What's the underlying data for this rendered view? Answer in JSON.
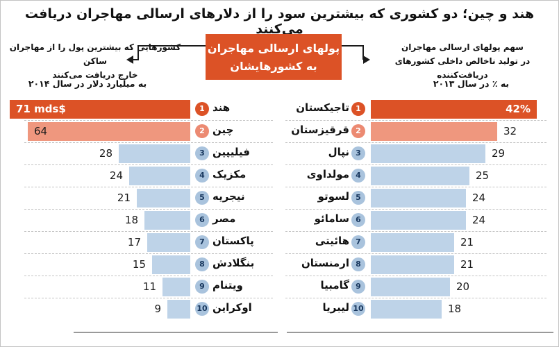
{
  "title": "هند و چین؛ دو کشوری که بیشترین سود را از دلارهای ارسالی مهاجران دریافت می‌کنند",
  "center_box": {
    "line1": "پولهای ارسالی مهاجران",
    "line2": "به کشورهایشان"
  },
  "left_note": {
    "line1": "کشورهایی که بیشترین پول را از مهاجران ساکن",
    "line2": "خارج دریافت می‌کنند",
    "unit": "به میلیارد دلار در سال ۲۰۱۴"
  },
  "right_note": {
    "line1": "سهم پولهای ارسالی مهاجران",
    "line2": "در تولید ناخالص داخلی کشورهای دریافت‌کننده",
    "unit": "به ٪ در سال ۲۰۱۳"
  },
  "colors": {
    "accent_dark": "#dc5226",
    "accent_light": "#ef977e",
    "badge_light": "#ec8a72",
    "bar_blue": "#bed3e8",
    "badge_blue": "#a9c3dd",
    "badge_text": "#17365d",
    "text": "#1a1a1a"
  },
  "chart_data": [
    {
      "type": "bar",
      "orientation": "horizontal",
      "bar_direction": "right-to-left",
      "title": "کشورهایی که بیشترین پول را از مهاجران ساکن خارج دریافت می‌کنند",
      "unit_label": "به میلیارد دلار در سال ۲۰۱۴",
      "categories": [
        "هند",
        "چین",
        "فیلیپین",
        "مکزیک",
        "نیجریه",
        "مصر",
        "پاکستان",
        "بنگلادش",
        "ویتنام",
        "اوکراین"
      ],
      "ranks": [
        1,
        2,
        3,
        4,
        5,
        6,
        7,
        8,
        9,
        10
      ],
      "values": [
        71,
        64,
        28,
        24,
        21,
        18,
        17,
        15,
        11,
        9
      ],
      "value_labels": [
        "71 mds$",
        "64",
        "28",
        "24",
        "21",
        "18",
        "17",
        "15",
        "11",
        "9"
      ],
      "xlim": [
        0,
        71
      ],
      "legend": "none",
      "grid": "off"
    },
    {
      "type": "bar",
      "orientation": "horizontal",
      "bar_direction": "left-to-right",
      "title": "سهم پولهای ارسالی مهاجران در تولید ناخالص داخلی کشورهای دریافت‌کننده",
      "unit_label": "به ٪ در سال ۲۰۱۳",
      "categories": [
        "تاجیکستان",
        "قرقیزستان",
        "نپال",
        "مولداوی",
        "لسوتو",
        "سامائو",
        "هائیتی",
        "ارمنستان",
        "گامبیا",
        "لیبریا"
      ],
      "ranks": [
        1,
        2,
        3,
        4,
        5,
        6,
        7,
        8,
        9,
        10
      ],
      "values": [
        42,
        32,
        29,
        25,
        24,
        24,
        21,
        21,
        20,
        18
      ],
      "value_labels": [
        "42%",
        "32",
        "29",
        "25",
        "24",
        "24",
        "21",
        "21",
        "20",
        "18"
      ],
      "xlim": [
        0,
        42
      ],
      "legend": "none",
      "grid": "off"
    }
  ]
}
